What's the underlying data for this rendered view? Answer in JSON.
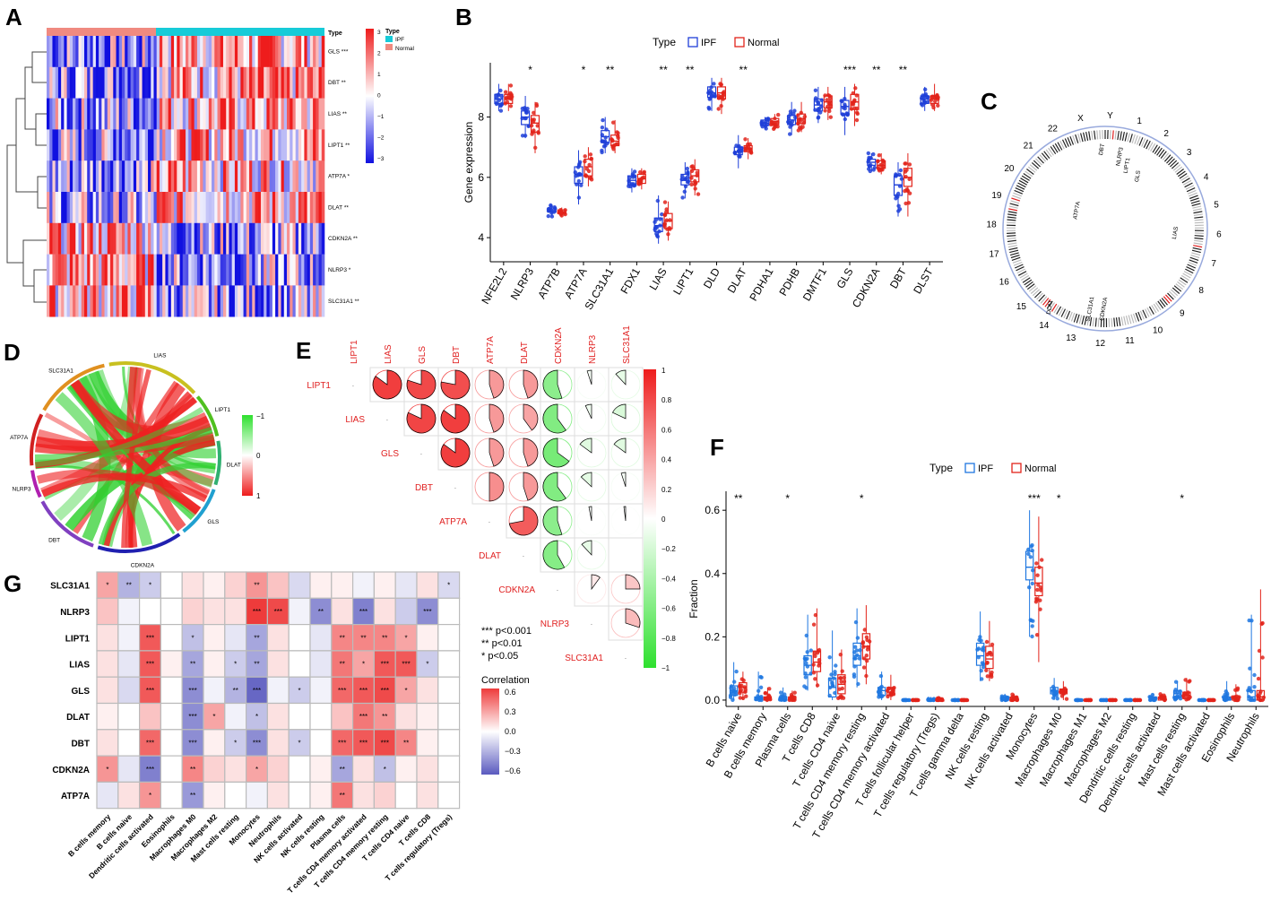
{
  "colors": {
    "ipf": "#1f3fd8",
    "normal": "#e2231a",
    "ipfF": "#1f77e0",
    "normalF": "#e2231a",
    "hi": "#ee1c1c",
    "lo": "#1010e0",
    "mid": "#ffffff",
    "typeIPF": "#17cbd8",
    "typeNormal": "#f08a80",
    "green": "#2ee02e",
    "corrHi": "#ee3b3b",
    "corrLo": "#5a5abf"
  },
  "panels": {
    "A": "A",
    "B": "B",
    "C": "C",
    "D": "D",
    "E": "E",
    "F": "F",
    "G": "G"
  },
  "A": {
    "typeLabel": "Type",
    "legendTitle": "Type",
    "legend": [
      "IPF",
      "Normal"
    ],
    "scaleTicks": [
      "3",
      "2",
      "1",
      "0",
      "−1",
      "−2",
      "−3"
    ],
    "rows": [
      "GLS ***",
      "DBT **",
      "LIAS **",
      "LIPT1 **",
      "ATP7A *",
      "DLAT **",
      "CDKN2A **",
      "NLRP3 *",
      "SLC31A1 **"
    ]
  },
  "chart_data": [
    {
      "panel": "B",
      "type": "box",
      "legendTitle": "Type",
      "legend": [
        "IPF",
        "Normal"
      ],
      "ylabel": "Gene expression",
      "ylim": [
        3.2,
        9.8
      ],
      "yticks": [
        "4",
        "6",
        "8"
      ],
      "categories": [
        "NFE2L2",
        "NLRP3",
        "ATP7B",
        "ATP7A",
        "SLC31A1",
        "FDX1",
        "LIAS",
        "LIPT1",
        "DLD",
        "DLAT",
        "PDHA1",
        "PDHB",
        "DMTF1",
        "GLS",
        "CDKN2A",
        "DBT",
        "DLST"
      ],
      "sig": [
        "",
        "*",
        "",
        "*",
        "**",
        "",
        "**",
        "**",
        "",
        "**",
        "",
        "",
        "",
        "***",
        "**",
        "**",
        ""
      ],
      "series": [
        {
          "name": "IPF",
          "median": [
            8.6,
            8.0,
            4.9,
            6.1,
            7.35,
            5.9,
            4.4,
            5.9,
            8.8,
            6.85,
            7.8,
            7.9,
            8.4,
            8.35,
            6.5,
            5.75,
            8.6
          ],
          "q1": [
            8.45,
            7.75,
            4.85,
            5.8,
            7.15,
            5.75,
            4.2,
            5.75,
            8.65,
            6.75,
            7.72,
            7.75,
            8.2,
            8.1,
            6.4,
            5.4,
            8.45
          ],
          "q3": [
            8.75,
            8.2,
            4.95,
            6.35,
            7.55,
            6.05,
            4.65,
            6.1,
            9.0,
            7.0,
            7.9,
            8.05,
            8.6,
            8.55,
            6.6,
            6.05,
            8.7
          ],
          "min": [
            8.2,
            7.3,
            4.7,
            5.1,
            6.8,
            5.5,
            3.8,
            5.3,
            8.2,
            6.3,
            7.6,
            7.4,
            7.8,
            7.4,
            6.2,
            4.7,
            8.2
          ],
          "max": [
            9.1,
            8.7,
            5.1,
            6.9,
            8.0,
            6.3,
            5.4,
            6.5,
            9.3,
            7.4,
            8.0,
            8.5,
            9.0,
            9.0,
            6.8,
            6.5,
            9.0
          ]
        },
        {
          "name": "Normal",
          "median": [
            8.6,
            7.8,
            4.85,
            6.35,
            7.2,
            5.95,
            4.55,
            6.05,
            8.8,
            6.95,
            7.85,
            7.95,
            8.5,
            8.5,
            6.4,
            6.0,
            8.6
          ],
          "q1": [
            8.45,
            7.5,
            4.8,
            6.05,
            7.05,
            5.8,
            4.3,
            5.85,
            8.6,
            6.85,
            7.75,
            7.8,
            8.3,
            8.25,
            6.3,
            5.7,
            8.45
          ],
          "q3": [
            8.75,
            8.05,
            4.92,
            6.6,
            7.4,
            6.1,
            4.8,
            6.25,
            9.0,
            7.05,
            7.95,
            8.1,
            8.7,
            8.75,
            6.55,
            6.3,
            8.7
          ],
          "min": [
            8.2,
            6.8,
            4.7,
            5.7,
            6.8,
            5.6,
            3.9,
            5.4,
            8.1,
            6.6,
            7.6,
            7.5,
            7.9,
            7.7,
            6.1,
            4.7,
            8.2
          ],
          "max": [
            9.1,
            8.5,
            5.0,
            7.0,
            7.9,
            6.3,
            5.2,
            6.6,
            9.3,
            7.3,
            8.1,
            8.5,
            9.0,
            9.1,
            6.8,
            6.8,
            9.1
          ]
        }
      ]
    },
    {
      "panel": "F",
      "type": "box",
      "legendTitle": "Type",
      "legend": [
        "IPF",
        "Normal"
      ],
      "ylabel": "Fraction",
      "ylim": [
        -0.02,
        0.66
      ],
      "yticks": [
        "0.0",
        "0.2",
        "0.4",
        "0.6"
      ],
      "categories": [
        "B cells naive",
        "B cells memory",
        "Plasma cells",
        "T cells CD8",
        "T cells CD4 naive",
        "T cells CD4 memory resting",
        "T cells CD4 memory activated",
        "T cells follicular helper",
        "T cells regulatory (Tregs)",
        "T cells gamma delta",
        "NK cells resting",
        "NK cells activated",
        "Monocytes",
        "Macrophages M0",
        "Macrophages M1",
        "Macrophages M2",
        "Dendritic cells resting",
        "Dendritic cells activated",
        "Mast cells resting",
        "Mast cells activated",
        "Eosinophils",
        "Neutrophils"
      ],
      "sig": [
        "**",
        "",
        "*",
        "",
        "",
        "*",
        "",
        "",
        "",
        "",
        "",
        "",
        "***",
        "*",
        "",
        "",
        "",
        "",
        "*",
        "",
        "",
        ""
      ],
      "series": [
        {
          "name": "IPF",
          "median": [
            0.03,
            0.005,
            0.005,
            0.11,
            0.04,
            0.14,
            0.03,
            0.0,
            0.0,
            0.0,
            0.14,
            0.0,
            0.42,
            0.03,
            0.0,
            0.0,
            0.0,
            0.005,
            0.02,
            0.0,
            0.005,
            0.01
          ],
          "q1": [
            0.015,
            0.0,
            0.0,
            0.08,
            0.01,
            0.11,
            0.015,
            0.0,
            0.0,
            0.0,
            0.11,
            0.0,
            0.38,
            0.02,
            0.0,
            0.0,
            0.0,
            0.0,
            0.01,
            0.0,
            0.0,
            0.0
          ],
          "q3": [
            0.045,
            0.01,
            0.01,
            0.14,
            0.07,
            0.18,
            0.04,
            0.0,
            0.0,
            0.0,
            0.18,
            0.01,
            0.47,
            0.04,
            0.0,
            0.0,
            0.0,
            0.01,
            0.03,
            0.0,
            0.01,
            0.03
          ],
          "min": [
            0.0,
            0.0,
            0.0,
            0.03,
            0.0,
            0.04,
            0.0,
            0.0,
            0.0,
            0.0,
            0.06,
            0.0,
            0.2,
            0.0,
            0.0,
            0.0,
            0.0,
            0.0,
            0.0,
            0.0,
            0.0,
            0.0
          ],
          "max": [
            0.12,
            0.09,
            0.04,
            0.27,
            0.22,
            0.29,
            0.09,
            0.0,
            0.01,
            0.0,
            0.28,
            0.02,
            0.6,
            0.07,
            0.0,
            0.0,
            0.0,
            0.02,
            0.06,
            0.0,
            0.06,
            0.27
          ]
        },
        {
          "name": "Normal",
          "median": [
            0.04,
            0.005,
            0.005,
            0.12,
            0.05,
            0.17,
            0.025,
            0.0,
            0.0,
            0.0,
            0.13,
            0.0,
            0.37,
            0.025,
            0.0,
            0.0,
            0.0,
            0.005,
            0.015,
            0.0,
            0.005,
            0.01
          ],
          "q1": [
            0.025,
            0.0,
            0.0,
            0.09,
            0.02,
            0.13,
            0.015,
            0.0,
            0.0,
            0.0,
            0.1,
            0.0,
            0.33,
            0.02,
            0.0,
            0.0,
            0.0,
            0.0,
            0.005,
            0.0,
            0.0,
            0.0
          ],
          "q3": [
            0.055,
            0.01,
            0.01,
            0.155,
            0.08,
            0.21,
            0.04,
            0.0,
            0.0,
            0.0,
            0.17,
            0.01,
            0.42,
            0.035,
            0.0,
            0.0,
            0.0,
            0.01,
            0.025,
            0.0,
            0.01,
            0.03
          ],
          "min": [
            0.0,
            0.0,
            0.0,
            0.04,
            0.0,
            0.05,
            0.0,
            0.0,
            0.0,
            0.0,
            0.06,
            0.0,
            0.12,
            0.0,
            0.0,
            0.0,
            0.0,
            0.0,
            0.0,
            0.0,
            0.0,
            0.0
          ],
          "max": [
            0.09,
            0.04,
            0.03,
            0.29,
            0.16,
            0.3,
            0.08,
            0.0,
            0.01,
            0.0,
            0.25,
            0.02,
            0.58,
            0.06,
            0.0,
            0.0,
            0.0,
            0.02,
            0.07,
            0.0,
            0.05,
            0.35
          ]
        }
      ]
    },
    {
      "panel": "E",
      "type": "heatmap",
      "genes": [
        "LIPT1",
        "LIAS",
        "GLS",
        "DBT",
        "ATP7A",
        "DLAT",
        "CDKN2A",
        "NLRP3",
        "SLC31A1"
      ],
      "legendTicks": [
        "1",
        "0.8",
        "0.6",
        "0.4",
        "0.2",
        "0",
        "−0.2",
        "−0.4",
        "−0.6",
        "−0.8",
        "−1"
      ],
      "upper": [
        [
          0.85,
          0.8,
          0.78,
          0.45,
          0.45,
          -0.55,
          -0.05,
          -0.12
        ],
        [
          0.82,
          0.85,
          0.45,
          0.4,
          -0.6,
          -0.07,
          -0.18
        ],
        [
          0.85,
          0.45,
          0.45,
          -0.65,
          -0.15,
          -0.15
        ],
        [
          0.5,
          0.45,
          -0.6,
          -0.13,
          -0.05
        ],
        [
          0.72,
          -0.55,
          -0.03,
          -0.02
        ],
        [
          -0.58,
          -0.12,
          0.0
        ],
        [
          0.1,
          0.25
        ],
        [
          0.3
        ]
      ]
    },
    {
      "panel": "G",
      "type": "heatmap",
      "rows": [
        "SLC31A1",
        "NLRP3",
        "LIPT1",
        "LIAS",
        "GLS",
        "DLAT",
        "DBT",
        "CDKN2A",
        "ATP7A"
      ],
      "cols": [
        "B cells memory",
        "B cells naive",
        "Dendritic cells activated",
        "Eosinophils",
        "Macrophages M0",
        "Macrophages M2",
        "Mast cells resting",
        "Monocytes",
        "Neutrophils",
        "NK cells activated",
        "NK cells resting",
        "Plasma cells",
        "T cells CD4 memory activated",
        "T cells CD4 memory resting",
        "T cells CD4 naive",
        "T cells CD8",
        "T cells regulatory (Tregs)"
      ],
      "values": [
        [
          0.3,
          -0.3,
          -0.2,
          0.0,
          0.1,
          0.05,
          0.15,
          0.35,
          0.2,
          -0.15,
          0.05,
          0.05,
          -0.05,
          0.05,
          -0.1,
          0.1,
          -0.15
        ],
        [
          0.2,
          -0.05,
          0.0,
          0.0,
          0.15,
          0.1,
          0.1,
          0.7,
          0.6,
          -0.05,
          -0.45,
          0.1,
          -0.5,
          0.1,
          -0.2,
          -0.45,
          0.0
        ],
        [
          0.1,
          -0.05,
          0.55,
          0.0,
          -0.25,
          0.05,
          -0.1,
          -0.35,
          0.1,
          0.0,
          -0.1,
          0.4,
          0.4,
          0.4,
          0.3,
          0.05,
          0.0
        ],
        [
          0.1,
          -0.1,
          0.55,
          0.05,
          -0.35,
          0.05,
          -0.2,
          -0.35,
          0.1,
          0.0,
          -0.1,
          0.45,
          0.3,
          0.55,
          0.55,
          -0.2,
          0.0
        ],
        [
          0.1,
          -0.15,
          0.55,
          0.0,
          -0.45,
          -0.05,
          -0.3,
          -0.6,
          -0.05,
          -0.2,
          -0.05,
          0.5,
          0.55,
          0.6,
          0.3,
          0.1,
          0.0
        ],
        [
          0.05,
          0.0,
          0.2,
          0.0,
          -0.45,
          0.3,
          -0.05,
          -0.25,
          0.1,
          0.0,
          0.0,
          0.2,
          0.45,
          0.35,
          0.1,
          0.05,
          0.0
        ],
        [
          0.1,
          0.0,
          0.5,
          0.0,
          -0.45,
          0.05,
          -0.2,
          -0.45,
          0.1,
          -0.2,
          0.0,
          0.5,
          0.55,
          0.6,
          0.4,
          0.05,
          0.0
        ],
        [
          0.35,
          -0.1,
          -0.5,
          0.0,
          0.4,
          0.15,
          0.1,
          0.3,
          0.15,
          0.0,
          0.05,
          -0.35,
          0.1,
          -0.25,
          0.05,
          0.1,
          0.0
        ],
        [
          -0.1,
          0.1,
          0.35,
          0.0,
          -0.4,
          0.05,
          0.0,
          -0.05,
          0.1,
          0.0,
          0.05,
          0.45,
          0.1,
          0.15,
          0.0,
          0.1,
          0.0
        ]
      ],
      "stars": [
        [
          "*",
          "**",
          "*",
          "",
          "",
          "",
          "",
          "**",
          "",
          "",
          "",
          "",
          "",
          "",
          "",
          "",
          "*"
        ],
        [
          "",
          "",
          "",
          "",
          "",
          "",
          "",
          "***",
          "***",
          "",
          "**",
          "",
          "***",
          "",
          "",
          "***",
          ""
        ],
        [
          "",
          "",
          "***",
          "",
          "*",
          "",
          "",
          "**",
          "",
          "",
          "",
          "**",
          "**",
          "**",
          "*",
          "",
          ""
        ],
        [
          "",
          "",
          "***",
          "",
          "**",
          "",
          "*",
          "**",
          "",
          "",
          "",
          "**",
          "*",
          "***",
          "***",
          "*",
          ""
        ],
        [
          "",
          "",
          "***",
          "",
          "***",
          "",
          "**",
          "***",
          "",
          "*",
          "",
          "***",
          "***",
          "***",
          "*",
          "",
          ""
        ],
        [
          "",
          "",
          "",
          "",
          "***",
          "*",
          "",
          "*",
          "",
          "",
          "",
          "",
          "***",
          "**",
          "",
          "",
          ""
        ],
        [
          "",
          "",
          "***",
          "",
          "***",
          "",
          "*",
          "***",
          "",
          "*",
          "",
          "***",
          "***",
          "***",
          "**",
          "",
          ""
        ],
        [
          "*",
          "",
          "***",
          "",
          "**",
          "",
          "",
          "*",
          "",
          "",
          "",
          "**",
          "",
          "*",
          "",
          "",
          ""
        ],
        [
          "",
          "",
          "*",
          "",
          "**",
          "",
          "",
          "",
          "",
          "",
          "",
          "**",
          "",
          "",
          "",
          "",
          ""
        ]
      ],
      "pvalLegend": [
        "*** p<0.001",
        "** p<0.01",
        "* p<0.05"
      ],
      "legendTitle": "Correlation",
      "legendTicks": [
        "0.6",
        "0.3",
        "0.0",
        "−0.3",
        "−0.6"
      ]
    }
  ],
  "C": {
    "chromosomes": [
      "1",
      "2",
      "3",
      "4",
      "5",
      "6",
      "7",
      "8",
      "9",
      "10",
      "11",
      "12",
      "13",
      "14",
      "15",
      "16",
      "17",
      "18",
      "19",
      "20",
      "21",
      "22",
      "X",
      "Y"
    ],
    "genes": [
      "ATP7A",
      "DBT",
      "NLRP3",
      "LIPT1",
      "GLS",
      "LIAS",
      "DLAT",
      "SLC31A1",
      "CDKN2A"
    ]
  },
  "D": {
    "genes": [
      "LIAS",
      "LIPT1",
      "DLAT",
      "GLS",
      "CDKN2A",
      "DBT",
      "NLRP3",
      "ATP7A",
      "SLC31A1"
    ],
    "legendTicks": [
      "−1",
      "0",
      "1"
    ]
  }
}
